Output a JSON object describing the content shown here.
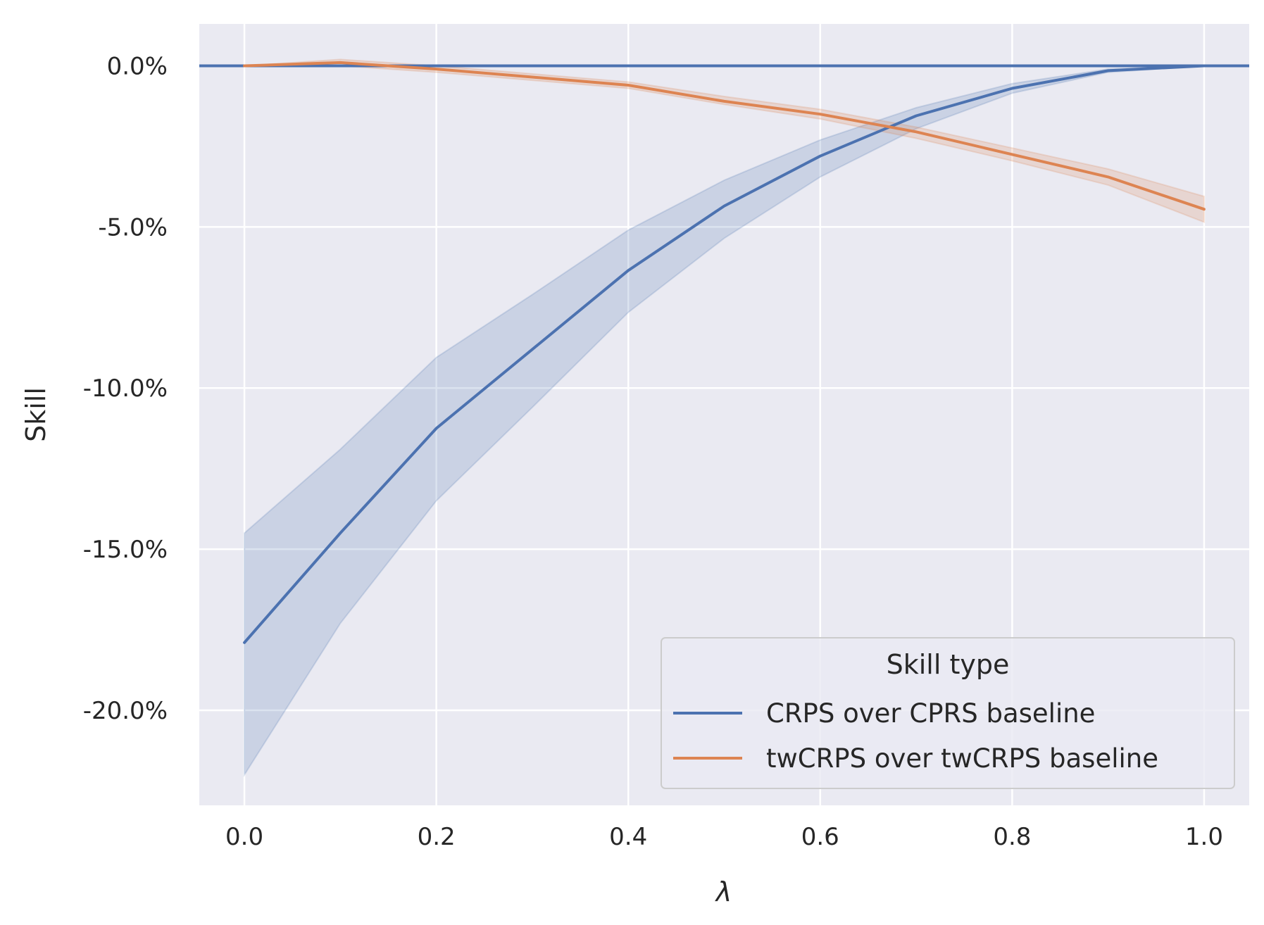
{
  "chart_data": {
    "type": "line",
    "title": "",
    "xlabel": "λ",
    "ylabel": "Skill",
    "xlim": [
      -0.047,
      1.047
    ],
    "ylim": [
      -22.95,
      1.3
    ],
    "x_ticks": [
      0.0,
      0.2,
      0.4,
      0.6,
      0.8,
      1.0
    ],
    "x_tick_labels": [
      "0.0",
      "0.2",
      "0.4",
      "0.6",
      "0.8",
      "1.0"
    ],
    "y_ticks": [
      0,
      -5,
      -10,
      -15,
      -20
    ],
    "y_tick_labels": [
      "0.0%",
      "-5.0%",
      "-10.0%",
      "-15.0%",
      "-20.0%"
    ],
    "grid": true,
    "background": "#eaeaf2",
    "legend": {
      "title": "Skill type",
      "placement": "lower-right"
    },
    "reference_line": {
      "y": 0.0,
      "color": "#4c72b0"
    },
    "series": [
      {
        "name": "CRPS over CPRS baseline",
        "color": "#4c72b0",
        "x": [
          0.0,
          0.1,
          0.2,
          0.3,
          0.4,
          0.5,
          0.6,
          0.7,
          0.8,
          0.9,
          1.0
        ],
        "y": [
          -17.9,
          -14.5,
          -11.25,
          -8.8,
          -6.35,
          -4.35,
          -2.8,
          -1.55,
          -0.7,
          -0.15,
          0.0
        ],
        "lower": [
          -22.0,
          -17.3,
          -13.5,
          -10.6,
          -7.65,
          -5.35,
          -3.45,
          -1.95,
          -0.85,
          -0.2,
          0.0
        ],
        "upper": [
          -14.5,
          -11.9,
          -9.05,
          -7.1,
          -5.1,
          -3.55,
          -2.3,
          -1.3,
          -0.55,
          -0.1,
          0.0
        ]
      },
      {
        "name": "twCRPS over twCRPS baseline",
        "color": "#dd8452",
        "x": [
          0.0,
          0.1,
          0.2,
          0.3,
          0.4,
          0.5,
          0.6,
          0.7,
          0.8,
          0.9,
          1.0
        ],
        "y": [
          0.0,
          0.1,
          -0.1,
          -0.35,
          -0.6,
          -1.1,
          -1.5,
          -2.05,
          -2.75,
          -3.45,
          -4.45
        ],
        "lower": [
          0.0,
          0.0,
          -0.2,
          -0.45,
          -0.7,
          -1.2,
          -1.65,
          -2.25,
          -2.95,
          -3.7,
          -4.85
        ],
        "upper": [
          0.0,
          0.2,
          0.0,
          -0.25,
          -0.5,
          -0.95,
          -1.35,
          -1.9,
          -2.55,
          -3.2,
          -4.05
        ]
      }
    ]
  }
}
